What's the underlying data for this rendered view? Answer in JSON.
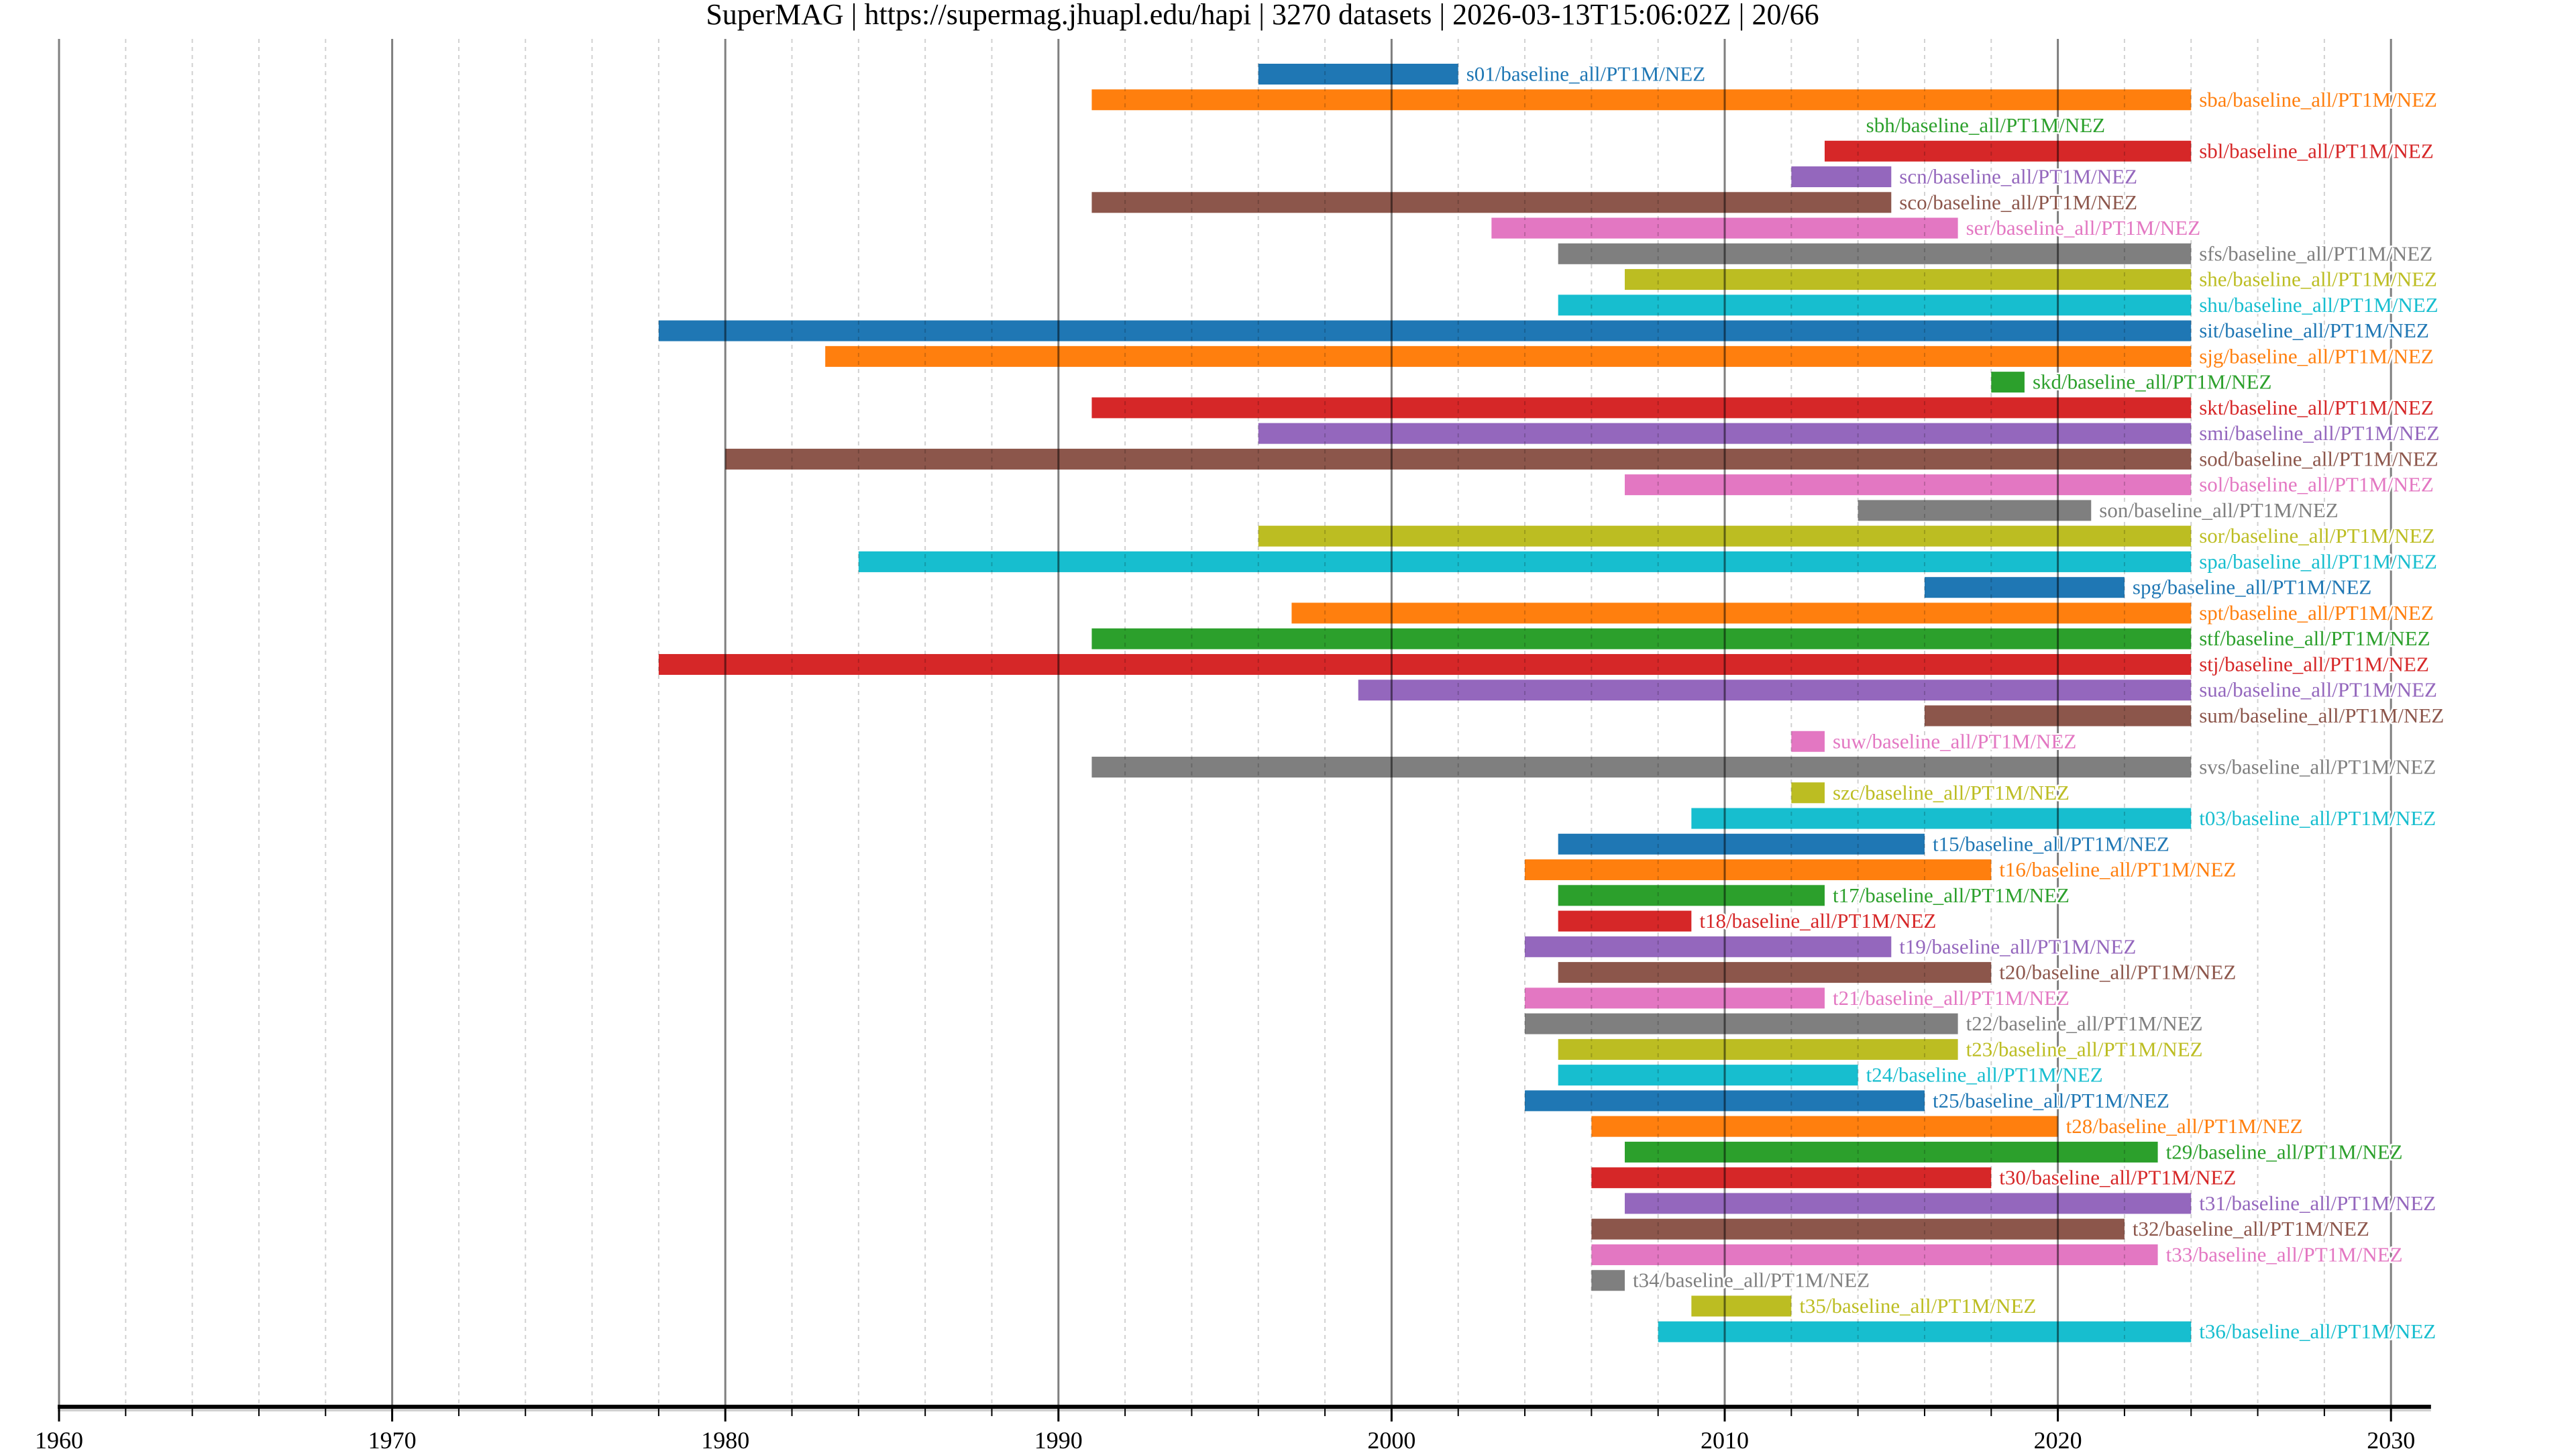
{
  "chart_data": {
    "type": "timeline",
    "title": "SuperMAG | https://supermag.jhuapl.edu/hapi | 3270 datasets | 2026-03-13T15:06:02Z | 20/66",
    "xlabel": "",
    "ylabel": "",
    "xlim": [
      1960,
      2031.2
    ],
    "x_ticks_major": [
      1960,
      1970,
      1980,
      1990,
      2000,
      2010,
      2020,
      2030
    ],
    "x_tick_labels": [
      "1960",
      "1970",
      "1980",
      "1990",
      "2000",
      "2010",
      "2020",
      "2030"
    ],
    "x_minor_step": 2,
    "grid": true,
    "palette": [
      "#1f77b4",
      "#ff7f0e",
      "#2ca02c",
      "#d62728",
      "#9467bd",
      "#8c564b",
      "#e377c2",
      "#7f7f7f",
      "#bcbd22",
      "#17becf"
    ],
    "series": [
      {
        "name": "s01/baseline_all/PT1M/NEZ",
        "start": 1996,
        "end": 2002
      },
      {
        "name": "sba/baseline_all/PT1M/NEZ",
        "start": 1991,
        "end": 2024
      },
      {
        "name": "sbh/baseline_all/PT1M/NEZ",
        "start": 2014,
        "end": 2014
      },
      {
        "name": "sbl/baseline_all/PT1M/NEZ",
        "start": 2013,
        "end": 2024
      },
      {
        "name": "scn/baseline_all/PT1M/NEZ",
        "start": 2012,
        "end": 2015
      },
      {
        "name": "sco/baseline_all/PT1M/NEZ",
        "start": 1991,
        "end": 2015
      },
      {
        "name": "ser/baseline_all/PT1M/NEZ",
        "start": 2003,
        "end": 2017
      },
      {
        "name": "sfs/baseline_all/PT1M/NEZ",
        "start": 2005,
        "end": 2024
      },
      {
        "name": "she/baseline_all/PT1M/NEZ",
        "start": 2007,
        "end": 2024
      },
      {
        "name": "shu/baseline_all/PT1M/NEZ",
        "start": 2005,
        "end": 2024
      },
      {
        "name": "sit/baseline_all/PT1M/NEZ",
        "start": 1978,
        "end": 2024
      },
      {
        "name": "sjg/baseline_all/PT1M/NEZ",
        "start": 1983,
        "end": 2024
      },
      {
        "name": "skd/baseline_all/PT1M/NEZ",
        "start": 2018,
        "end": 2019
      },
      {
        "name": "skt/baseline_all/PT1M/NEZ",
        "start": 1991,
        "end": 2024
      },
      {
        "name": "smi/baseline_all/PT1M/NEZ",
        "start": 1996,
        "end": 2024
      },
      {
        "name": "sod/baseline_all/PT1M/NEZ",
        "start": 1980,
        "end": 2024
      },
      {
        "name": "sol/baseline_all/PT1M/NEZ",
        "start": 2007,
        "end": 2024
      },
      {
        "name": "son/baseline_all/PT1M/NEZ",
        "start": 2014,
        "end": 2021
      },
      {
        "name": "sor/baseline_all/PT1M/NEZ",
        "start": 1996,
        "end": 2024
      },
      {
        "name": "spa/baseline_all/PT1M/NEZ",
        "start": 1984,
        "end": 2024
      },
      {
        "name": "spg/baseline_all/PT1M/NEZ",
        "start": 2016,
        "end": 2022
      },
      {
        "name": "spt/baseline_all/PT1M/NEZ",
        "start": 1997,
        "end": 2024
      },
      {
        "name": "stf/baseline_all/PT1M/NEZ",
        "start": 1991,
        "end": 2024
      },
      {
        "name": "stj/baseline_all/PT1M/NEZ",
        "start": 1978,
        "end": 2024
      },
      {
        "name": "sua/baseline_all/PT1M/NEZ",
        "start": 1999,
        "end": 2024
      },
      {
        "name": "sum/baseline_all/PT1M/NEZ",
        "start": 2016,
        "end": 2024
      },
      {
        "name": "suw/baseline_all/PT1M/NEZ",
        "start": 2012,
        "end": 2013
      },
      {
        "name": "svs/baseline_all/PT1M/NEZ",
        "start": 1991,
        "end": 2024
      },
      {
        "name": "szc/baseline_all/PT1M/NEZ",
        "start": 2012,
        "end": 2013
      },
      {
        "name": "t03/baseline_all/PT1M/NEZ",
        "start": 2009,
        "end": 2024
      },
      {
        "name": "t15/baseline_all/PT1M/NEZ",
        "start": 2005,
        "end": 2016
      },
      {
        "name": "t16/baseline_all/PT1M/NEZ",
        "start": 2004,
        "end": 2018
      },
      {
        "name": "t17/baseline_all/PT1M/NEZ",
        "start": 2005,
        "end": 2013
      },
      {
        "name": "t18/baseline_all/PT1M/NEZ",
        "start": 2005,
        "end": 2009
      },
      {
        "name": "t19/baseline_all/PT1M/NEZ",
        "start": 2004,
        "end": 2015
      },
      {
        "name": "t20/baseline_all/PT1M/NEZ",
        "start": 2005,
        "end": 2018
      },
      {
        "name": "t21/baseline_all/PT1M/NEZ",
        "start": 2004,
        "end": 2013
      },
      {
        "name": "t22/baseline_all/PT1M/NEZ",
        "start": 2004,
        "end": 2017
      },
      {
        "name": "t23/baseline_all/PT1M/NEZ",
        "start": 2005,
        "end": 2017
      },
      {
        "name": "t24/baseline_all/PT1M/NEZ",
        "start": 2005,
        "end": 2014
      },
      {
        "name": "t25/baseline_all/PT1M/NEZ",
        "start": 2004,
        "end": 2016
      },
      {
        "name": "t28/baseline_all/PT1M/NEZ",
        "start": 2006,
        "end": 2020
      },
      {
        "name": "t29/baseline_all/PT1M/NEZ",
        "start": 2007,
        "end": 2023
      },
      {
        "name": "t30/baseline_all/PT1M/NEZ",
        "start": 2006,
        "end": 2018
      },
      {
        "name": "t31/baseline_all/PT1M/NEZ",
        "start": 2007,
        "end": 2024
      },
      {
        "name": "t32/baseline_all/PT1M/NEZ",
        "start": 2006,
        "end": 2022
      },
      {
        "name": "t33/baseline_all/PT1M/NEZ",
        "start": 2006,
        "end": 2023
      },
      {
        "name": "t34/baseline_all/PT1M/NEZ",
        "start": 2006,
        "end": 2007
      },
      {
        "name": "t35/baseline_all/PT1M/NEZ",
        "start": 2009,
        "end": 2012
      },
      {
        "name": "t36/baseline_all/PT1M/NEZ",
        "start": 2008,
        "end": 2024
      }
    ]
  }
}
